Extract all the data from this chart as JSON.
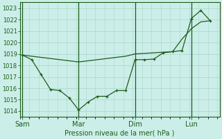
{
  "background_color": "#cceee8",
  "grid_color": "#aad4cc",
  "line_color": "#1a5c1a",
  "xlabel": "Pression niveau de la mer( hPa )",
  "ylim": [
    1013.5,
    1023.5
  ],
  "yticks": [
    1014,
    1015,
    1016,
    1017,
    1018,
    1019,
    1020,
    1021,
    1022,
    1023
  ],
  "xtick_labels": [
    "Sam",
    "Mar",
    "Dim",
    "Lun"
  ],
  "xtick_positions": [
    0,
    24,
    48,
    72
  ],
  "vertical_lines": [
    0,
    24,
    48,
    72
  ],
  "xlim": [
    -1,
    84
  ],
  "line1_x": [
    0,
    4,
    8,
    12,
    16,
    20,
    24,
    28,
    32,
    36,
    40,
    44,
    48,
    52,
    56,
    60,
    64,
    68,
    72,
    76,
    80
  ],
  "line1_y": [
    1018.9,
    1018.5,
    1017.2,
    1015.9,
    1015.8,
    1015.15,
    1014.1,
    1014.8,
    1015.3,
    1015.3,
    1015.8,
    1015.8,
    1018.5,
    1018.5,
    1018.55,
    1019.1,
    1019.2,
    1019.3,
    1022.1,
    1022.8,
    1021.9
  ],
  "line2_x": [
    0,
    4,
    8,
    12,
    16,
    20,
    24,
    28,
    32,
    36,
    40,
    44,
    48,
    52,
    56,
    60,
    64,
    68,
    72,
    76,
    80
  ],
  "line2_y": [
    1018.9,
    1018.8,
    1018.7,
    1018.6,
    1018.5,
    1018.4,
    1018.3,
    1018.4,
    1018.5,
    1018.6,
    1018.7,
    1018.8,
    1019.0,
    1019.05,
    1019.1,
    1019.15,
    1019.2,
    1020.3,
    1021.2,
    1021.8,
    1021.9
  ],
  "ytick_fontsize": 6,
  "xtick_fontsize": 7,
  "xlabel_fontsize": 7
}
